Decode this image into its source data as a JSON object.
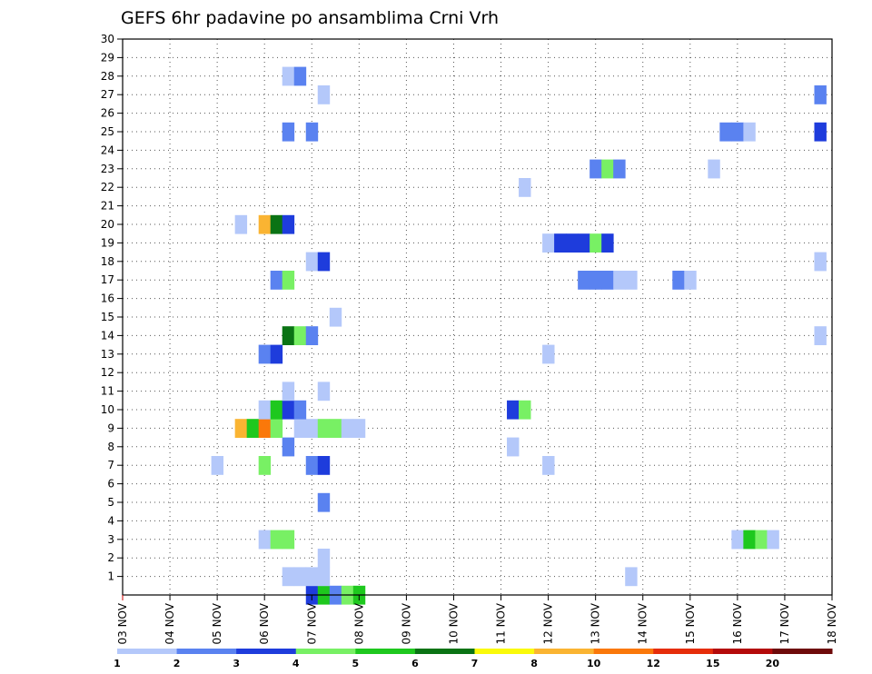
{
  "chart_data": {
    "type": "heatmap",
    "title": "GEFS 6hr padavine po ansamblima Crni Vrh",
    "x_ticks": [
      "03 NOV",
      "04 NOV",
      "05 NOV",
      "06 NOV",
      "07 NOV",
      "08 NOV",
      "09 NOV",
      "10 NOV",
      "11 NOV",
      "12 NOV",
      "13 NOV",
      "14 NOV",
      "15 NOV",
      "16 NOV",
      "17 NOV",
      "18 NOV"
    ],
    "x_unit": "6h steps from 03 NOV 00Z",
    "xlim": [
      0,
      60
    ],
    "y_ticks": [
      "1",
      "2",
      "3",
      "4",
      "5",
      "6",
      "7",
      "8",
      "9",
      "10",
      "11",
      "12",
      "13",
      "14",
      "15",
      "16",
      "17",
      "18",
      "19",
      "20",
      "21",
      "22",
      "23",
      "24",
      "25",
      "26",
      "27",
      "28",
      "29",
      "30"
    ],
    "ylim": [
      0,
      30
    ],
    "legend": {
      "labels": [
        "1",
        "2",
        "3",
        "4",
        "5",
        "6",
        "7",
        "8",
        "10",
        "12",
        "15",
        "20"
      ],
      "colors": [
        "#b4c8fa",
        "#5a82f0",
        "#1e3cdc",
        "#78f064",
        "#1ec81e",
        "#0a7314",
        "#fafa0a",
        "#fab432",
        "#fa780a",
        "#e62d0a",
        "#b40a0a",
        "#6e0a0a"
      ]
    },
    "cells": [
      {
        "x": 16,
        "y": 0,
        "c": 3
      },
      {
        "x": 17,
        "y": 0,
        "c": 5
      },
      {
        "x": 18,
        "y": 0,
        "c": 2
      },
      {
        "x": 19,
        "y": 0,
        "c": 4
      },
      {
        "x": 20,
        "y": 0,
        "c": 5
      },
      {
        "x": 14,
        "y": 1,
        "c": 1
      },
      {
        "x": 15,
        "y": 1,
        "c": 1
      },
      {
        "x": 16,
        "y": 1,
        "c": 1
      },
      {
        "x": 17,
        "y": 1,
        "c": 1
      },
      {
        "x": 43,
        "y": 1,
        "c": 1
      },
      {
        "x": 17,
        "y": 2,
        "c": 1
      },
      {
        "x": 12,
        "y": 3,
        "c": 1
      },
      {
        "x": 13,
        "y": 3,
        "c": 4
      },
      {
        "x": 14,
        "y": 3,
        "c": 4
      },
      {
        "x": 52,
        "y": 3,
        "c": 1
      },
      {
        "x": 53,
        "y": 3,
        "c": 5
      },
      {
        "x": 54,
        "y": 3,
        "c": 4
      },
      {
        "x": 55,
        "y": 3,
        "c": 1
      },
      {
        "x": 17,
        "y": 5,
        "c": 2
      },
      {
        "x": 8,
        "y": 7,
        "c": 1
      },
      {
        "x": 12,
        "y": 7,
        "c": 4
      },
      {
        "x": 16,
        "y": 7,
        "c": 2
      },
      {
        "x": 17,
        "y": 7,
        "c": 3
      },
      {
        "x": 36,
        "y": 7,
        "c": 1
      },
      {
        "x": 14,
        "y": 8,
        "c": 2
      },
      {
        "x": 33,
        "y": 8,
        "c": 1
      },
      {
        "x": 10,
        "y": 9,
        "c": 8
      },
      {
        "x": 11,
        "y": 9,
        "c": 5
      },
      {
        "x": 12,
        "y": 9,
        "c": 9
      },
      {
        "x": 13,
        "y": 9,
        "c": 4
      },
      {
        "x": 15,
        "y": 9,
        "c": 1
      },
      {
        "x": 16,
        "y": 9,
        "c": 1
      },
      {
        "x": 17,
        "y": 9,
        "c": 4
      },
      {
        "x": 18,
        "y": 9,
        "c": 4
      },
      {
        "x": 19,
        "y": 9,
        "c": 1
      },
      {
        "x": 20,
        "y": 9,
        "c": 1
      },
      {
        "x": 12,
        "y": 10,
        "c": 1
      },
      {
        "x": 13,
        "y": 10,
        "c": 5
      },
      {
        "x": 14,
        "y": 10,
        "c": 3
      },
      {
        "x": 15,
        "y": 10,
        "c": 2
      },
      {
        "x": 33,
        "y": 10,
        "c": 3
      },
      {
        "x": 34,
        "y": 10,
        "c": 4
      },
      {
        "x": 14,
        "y": 11,
        "c": 1
      },
      {
        "x": 17,
        "y": 11,
        "c": 1
      },
      {
        "x": 12,
        "y": 13,
        "c": 2
      },
      {
        "x": 13,
        "y": 13,
        "c": 3
      },
      {
        "x": 36,
        "y": 13,
        "c": 1
      },
      {
        "x": 14,
        "y": 14,
        "c": 6
      },
      {
        "x": 15,
        "y": 14,
        "c": 4
      },
      {
        "x": 16,
        "y": 14,
        "c": 2
      },
      {
        "x": 59,
        "y": 14,
        "c": 1
      },
      {
        "x": 18,
        "y": 15,
        "c": 1
      },
      {
        "x": 13,
        "y": 17,
        "c": 2
      },
      {
        "x": 14,
        "y": 17,
        "c": 4
      },
      {
        "x": 39,
        "y": 17,
        "c": 2
      },
      {
        "x": 40,
        "y": 17,
        "c": 2
      },
      {
        "x": 41,
        "y": 17,
        "c": 2
      },
      {
        "x": 42,
        "y": 17,
        "c": 1
      },
      {
        "x": 43,
        "y": 17,
        "c": 1
      },
      {
        "x": 47,
        "y": 17,
        "c": 2
      },
      {
        "x": 48,
        "y": 17,
        "c": 1
      },
      {
        "x": 16,
        "y": 18,
        "c": 1
      },
      {
        "x": 17,
        "y": 18,
        "c": 3
      },
      {
        "x": 59,
        "y": 18,
        "c": 1
      },
      {
        "x": 36,
        "y": 19,
        "c": 1
      },
      {
        "x": 37,
        "y": 19,
        "c": 3
      },
      {
        "x": 38,
        "y": 19,
        "c": 3
      },
      {
        "x": 39,
        "y": 19,
        "c": 3
      },
      {
        "x": 40,
        "y": 19,
        "c": 4
      },
      {
        "x": 41,
        "y": 19,
        "c": 3
      },
      {
        "x": 10,
        "y": 20,
        "c": 1
      },
      {
        "x": 12,
        "y": 20,
        "c": 8
      },
      {
        "x": 13,
        "y": 20,
        "c": 6
      },
      {
        "x": 14,
        "y": 20,
        "c": 3
      },
      {
        "x": 34,
        "y": 22,
        "c": 1
      },
      {
        "x": 40,
        "y": 23,
        "c": 2
      },
      {
        "x": 41,
        "y": 23,
        "c": 4
      },
      {
        "x": 42,
        "y": 23,
        "c": 2
      },
      {
        "x": 50,
        "y": 23,
        "c": 1
      },
      {
        "x": 14,
        "y": 25,
        "c": 2
      },
      {
        "x": 16,
        "y": 25,
        "c": 2
      },
      {
        "x": 51,
        "y": 25,
        "c": 2
      },
      {
        "x": 52,
        "y": 25,
        "c": 2
      },
      {
        "x": 53,
        "y": 25,
        "c": 1
      },
      {
        "x": 59,
        "y": 25,
        "c": 3
      },
      {
        "x": 17,
        "y": 27,
        "c": 1
      },
      {
        "x": 59,
        "y": 27,
        "c": 2
      },
      {
        "x": 14,
        "y": 28,
        "c": 1
      },
      {
        "x": 15,
        "y": 28,
        "c": 2
      }
    ]
  }
}
